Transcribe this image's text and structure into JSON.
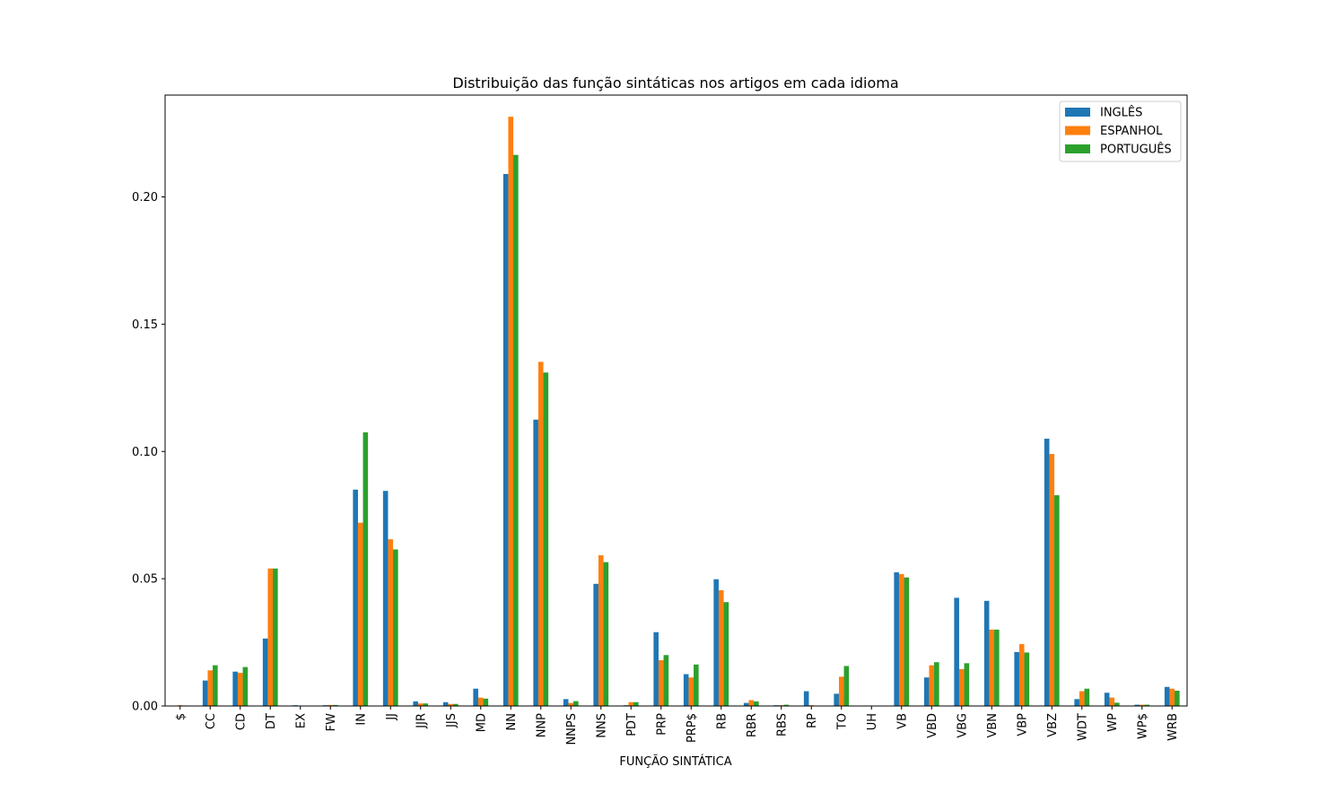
{
  "chart_data": {
    "type": "bar",
    "title": "Distribuição das função sintáticas nos artigos em cada idioma",
    "xlabel": "FUNÇÃO SINTÁTICA",
    "ylabel": "",
    "ylim": [
      0,
      0.24
    ],
    "yticks": [
      0.0,
      0.05,
      0.1,
      0.15,
      0.2
    ],
    "ytick_labels": [
      "0.00",
      "0.05",
      "0.10",
      "0.15",
      "0.20"
    ],
    "grid": false,
    "legend_position": "top-right",
    "categories": [
      "$",
      "CC",
      "CD",
      "DT",
      "EX",
      "FW",
      "IN",
      "JJ",
      "JJR",
      "JJS",
      "MD",
      "NN",
      "NNP",
      "NNPS",
      "NNS",
      "PDT",
      "PRP",
      "PRP$",
      "RB",
      "RBR",
      "RBS",
      "RP",
      "TO",
      "UH",
      "VB",
      "VBD",
      "VBG",
      "VBN",
      "VBP",
      "VBZ",
      "WDT",
      "WP",
      "WP$",
      "WRB"
    ],
    "series": [
      {
        "name": "INGLÊS",
        "color": "#1f77b4",
        "values": [
          0.0,
          0.01,
          0.0135,
          0.0265,
          0.0003,
          0.0003,
          0.085,
          0.0845,
          0.0018,
          0.0015,
          0.0068,
          0.209,
          0.1125,
          0.0027,
          0.048,
          0.0003,
          0.029,
          0.0125,
          0.0498,
          0.0012,
          0.0003,
          0.0058,
          0.0048,
          0.0,
          0.0525,
          0.0112,
          0.0425,
          0.0413,
          0.0212,
          0.105,
          0.0027,
          0.0052,
          0.0005,
          0.0075
        ]
      },
      {
        "name": "ESPANHOL",
        "color": "#ff7f0e",
        "values": [
          0.0003,
          0.014,
          0.013,
          0.054,
          0.0,
          0.0004,
          0.072,
          0.0655,
          0.001,
          0.0008,
          0.0033,
          0.2315,
          0.1352,
          0.0012,
          0.0592,
          0.0015,
          0.018,
          0.0112,
          0.0455,
          0.0023,
          0.0003,
          0.0003,
          0.0115,
          0.0,
          0.0518,
          0.016,
          0.0145,
          0.03,
          0.0243,
          0.099,
          0.0058,
          0.0033,
          0.0005,
          0.0068
        ]
      },
      {
        "name": "PORTUGUÊS",
        "color": "#2ca02c",
        "values": [
          0.0002,
          0.016,
          0.0153,
          0.054,
          0.0,
          0.0004,
          0.1075,
          0.0615,
          0.001,
          0.0008,
          0.0029,
          0.2165,
          0.131,
          0.0019,
          0.0565,
          0.0015,
          0.02,
          0.0163,
          0.0408,
          0.0018,
          0.0005,
          0.0,
          0.0157,
          0.0,
          0.0505,
          0.0172,
          0.0168,
          0.03,
          0.021,
          0.0828,
          0.0068,
          0.0013,
          0.0005,
          0.006
        ]
      }
    ]
  }
}
